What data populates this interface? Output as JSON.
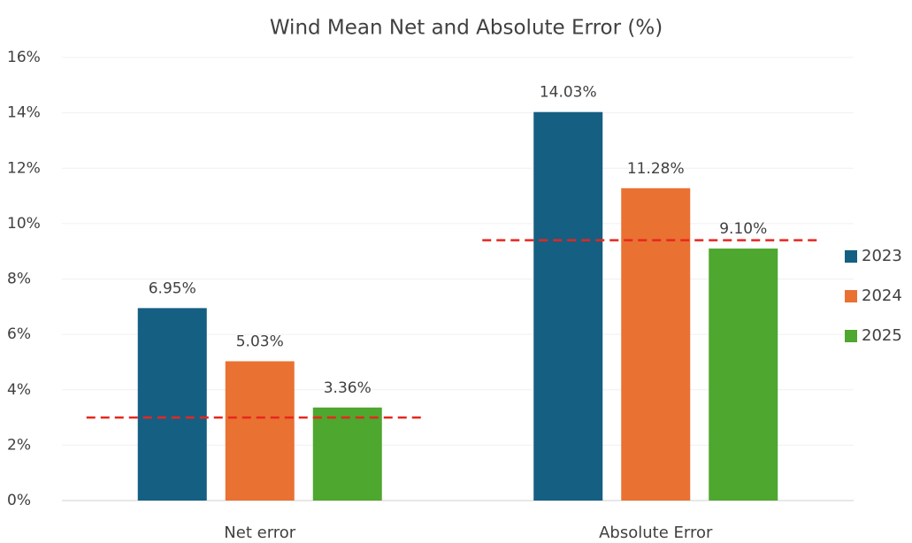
{
  "chart_data": {
    "type": "bar",
    "title": "Wind Mean Net and Absolute Error (%)",
    "categories": [
      "Net error",
      "Absolute Error"
    ],
    "series": [
      {
        "name": "2023",
        "color": "#155f82",
        "values": [
          6.95,
          14.03
        ],
        "value_labels": [
          "6.95%",
          "14.03%"
        ]
      },
      {
        "name": "2024",
        "color": "#e97132",
        "values": [
          5.03,
          11.28
        ],
        "value_labels": [
          "5.03%",
          "11.28%"
        ]
      },
      {
        "name": "2025",
        "color": "#4ea72e",
        "values": [
          3.36,
          9.1
        ],
        "value_labels": [
          "3.36%",
          "9.10%"
        ]
      }
    ],
    "reference_values": [
      3.0,
      9.4
    ],
    "reference_color": "#e8261f",
    "ylim": [
      0,
      16
    ],
    "yticks": [
      {
        "value": 0,
        "label": "0%"
      },
      {
        "value": 2,
        "label": "2%"
      },
      {
        "value": 4,
        "label": "4%"
      },
      {
        "value": 6,
        "label": "6%"
      },
      {
        "value": 8,
        "label": "8%"
      },
      {
        "value": 10,
        "label": "10%"
      },
      {
        "value": 12,
        "label": "12%"
      },
      {
        "value": 14,
        "label": "14%"
      },
      {
        "value": 16,
        "label": "16%"
      }
    ],
    "grid": true,
    "legend": "right"
  }
}
